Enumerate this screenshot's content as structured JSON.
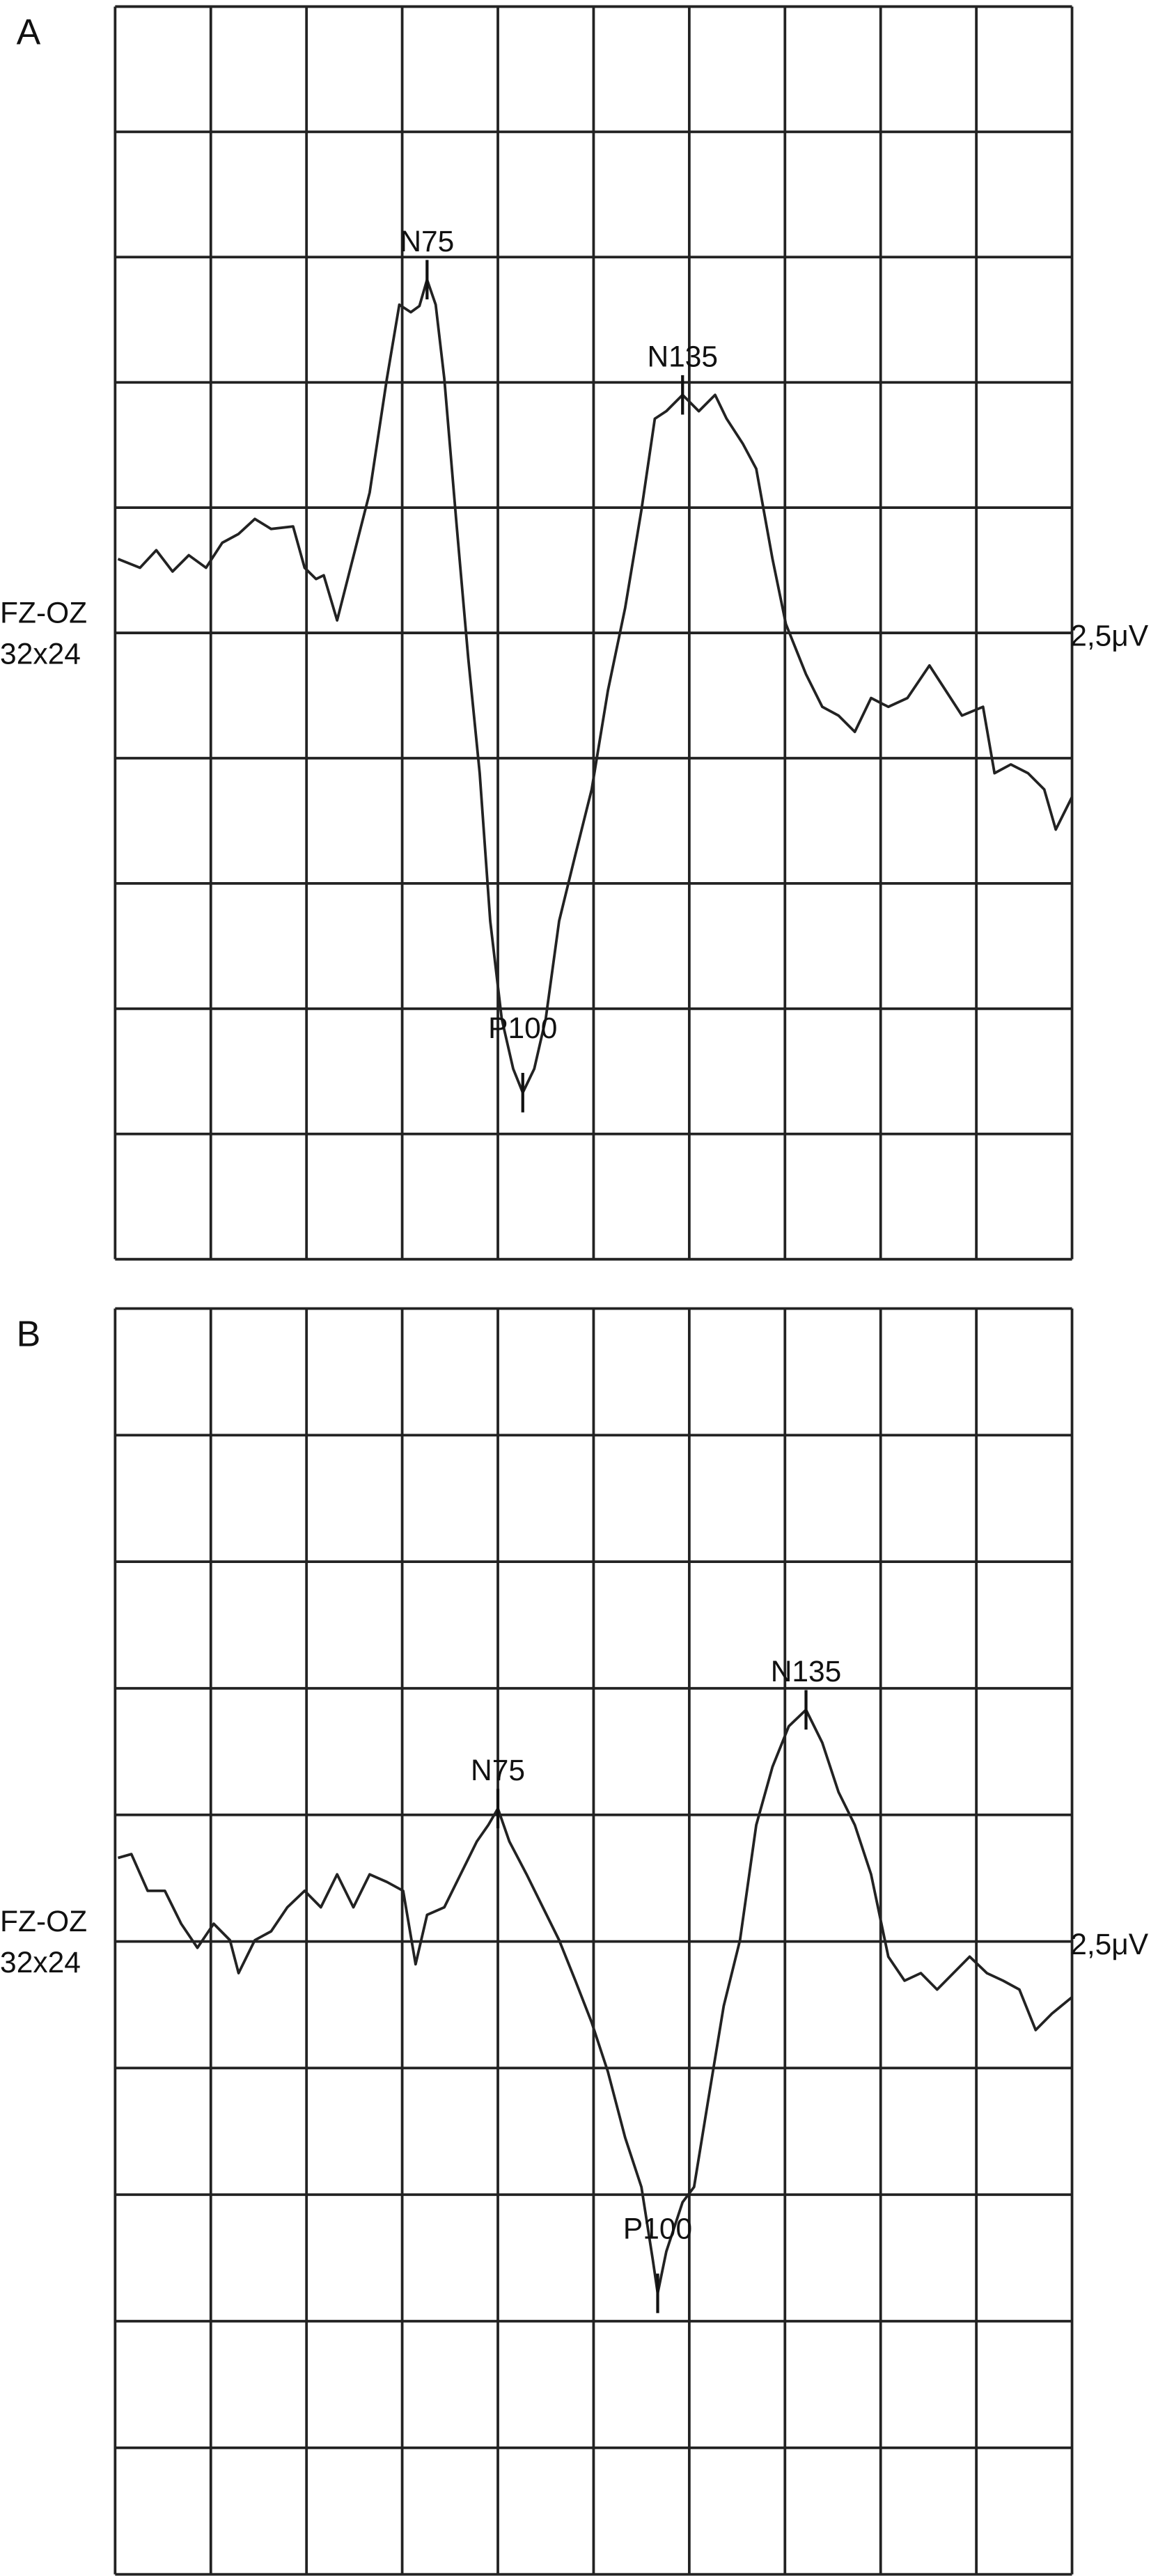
{
  "chart_data": [
    {
      "type": "line",
      "panel_label": "A",
      "channel": "FZ-OZ",
      "montage": "32x24",
      "scale_label": "2,5μV",
      "xlim": [
        0,
        10
      ],
      "ylim": [
        -5,
        5
      ],
      "grid": true,
      "color": "#222222",
      "x": [
        0.03,
        0.26,
        0.43,
        0.6,
        0.77,
        0.95,
        1.12,
        1.29,
        1.46,
        1.63,
        1.86,
        1.98,
        2.1,
        2.18,
        2.32,
        2.44,
        2.66,
        2.84,
        2.97,
        3.09,
        3.18,
        3.26,
        3.35,
        3.44,
        3.57,
        3.69,
        3.81,
        3.92,
        4.04,
        4.16,
        4.26,
        4.38,
        4.5,
        4.64,
        4.81,
        4.98,
        5.15,
        5.33,
        5.5,
        5.64,
        5.76,
        5.93,
        6.1,
        6.27,
        6.39,
        6.56,
        6.7,
        6.87,
        7.01,
        7.22,
        7.39,
        7.56,
        7.73,
        7.9,
        8.08,
        8.28,
        8.51,
        8.68,
        8.85,
        9.07,
        9.19,
        9.36,
        9.54,
        9.71,
        9.83,
        10.0
      ],
      "values": [
        0.59,
        0.52,
        0.66,
        0.49,
        0.62,
        0.52,
        0.72,
        0.79,
        0.91,
        0.83,
        0.85,
        0.52,
        0.43,
        0.46,
        0.1,
        0.46,
        1.12,
        2.03,
        2.62,
        2.56,
        2.61,
        2.82,
        2.62,
        2.03,
        0.85,
        -0.2,
        -1.12,
        -2.3,
        -3.08,
        -3.48,
        -3.67,
        -3.48,
        -3.08,
        -2.3,
        -1.77,
        -1.25,
        -0.46,
        0.2,
        0.98,
        1.71,
        1.77,
        1.9,
        1.77,
        1.9,
        1.71,
        1.51,
        1.31,
        0.59,
        0.07,
        -0.33,
        -0.59,
        -0.66,
        -0.79,
        -0.52,
        -0.59,
        -0.52,
        -0.26,
        -0.46,
        -0.66,
        -0.59,
        -1.12,
        -1.05,
        -1.12,
        -1.25,
        -1.57,
        -1.31
      ],
      "peaks": [
        {
          "label": "N75",
          "x": 3.26,
          "y": 2.82
        },
        {
          "label": "P100",
          "x": 4.26,
          "y": -3.67
        },
        {
          "label": "N135",
          "x": 5.93,
          "y": 1.9
        }
      ]
    },
    {
      "type": "line",
      "panel_label": "B",
      "channel": "FZ-OZ",
      "montage": "32x24",
      "scale_label": "2,5μV",
      "xlim": [
        0,
        10
      ],
      "ylim": [
        -5,
        5
      ],
      "grid": true,
      "color": "#222222",
      "x": [
        0.03,
        0.17,
        0.34,
        0.52,
        0.69,
        0.86,
        1.03,
        1.2,
        1.29,
        1.46,
        1.63,
        1.8,
        1.98,
        2.15,
        2.32,
        2.49,
        2.66,
        2.84,
        3.01,
        3.14,
        3.26,
        3.44,
        3.61,
        3.78,
        3.9,
        4.0,
        4.12,
        4.3,
        4.47,
        4.64,
        4.81,
        4.98,
        5.15,
        5.33,
        5.5,
        5.62,
        5.67,
        5.76,
        5.93,
        6.05,
        6.19,
        6.36,
        6.53,
        6.7,
        6.87,
        7.04,
        7.22,
        7.39,
        7.56,
        7.73,
        7.9,
        8.08,
        8.25,
        8.42,
        8.59,
        8.76,
        8.93,
        9.11,
        9.28,
        9.45,
        9.62,
        9.79,
        10.0
      ],
      "values": [
        0.66,
        0.69,
        0.4,
        0.4,
        0.14,
        -0.05,
        0.14,
        0.01,
        -0.25,
        0.01,
        0.08,
        0.27,
        0.4,
        0.27,
        0.53,
        0.27,
        0.53,
        0.47,
        0.4,
        -0.18,
        0.21,
        0.27,
        0.53,
        0.79,
        0.92,
        1.05,
        0.79,
        0.53,
        0.27,
        0.01,
        -0.31,
        -0.64,
        -1.03,
        -1.55,
        -1.94,
        -2.52,
        -2.78,
        -2.45,
        -2.06,
        -1.94,
        -1.29,
        -0.51,
        0.01,
        0.92,
        1.38,
        1.7,
        1.83,
        1.57,
        1.18,
        0.92,
        0.53,
        -0.12,
        -0.31,
        -0.25,
        -0.38,
        -0.25,
        -0.12,
        -0.25,
        -0.31,
        -0.38,
        -0.7,
        -0.57,
        -0.44
      ],
      "peaks": [
        {
          "label": "N75",
          "x": 4.0,
          "y": 1.05
        },
        {
          "label": "P100",
          "x": 5.67,
          "y": -2.78
        },
        {
          "label": "N135",
          "x": 7.22,
          "y": 1.83
        }
      ]
    }
  ]
}
